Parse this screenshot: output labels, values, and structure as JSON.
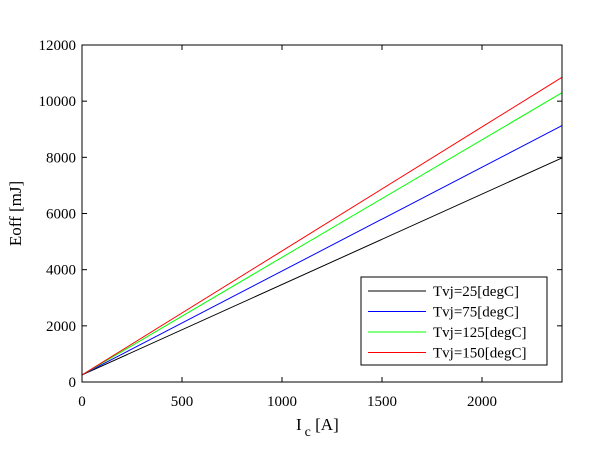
{
  "chart_data": {
    "type": "line",
    "xlabel_main": "I",
    "xlabel_sub": "c",
    "xlabel_unit": " [A]",
    "ylabel": "Eoff [mJ]",
    "xlim": [
      0,
      2400
    ],
    "ylim": [
      0,
      12000
    ],
    "xticks": [
      0,
      500,
      1000,
      1500,
      2000
    ],
    "yticks": [
      0,
      2000,
      4000,
      6000,
      8000,
      10000,
      12000
    ],
    "grid": false,
    "legend_position": "bottom-right",
    "series": [
      {
        "name": "Tvj=25[degC]",
        "color": "#000000",
        "x": [
          0,
          2400
        ],
        "y": [
          250,
          7980
        ]
      },
      {
        "name": "Tvj=75[degC]",
        "color": "#0000ff",
        "x": [
          0,
          2400
        ],
        "y": [
          250,
          9130
        ]
      },
      {
        "name": "Tvj=125[degC]",
        "color": "#00ff00",
        "x": [
          0,
          2400
        ],
        "y": [
          250,
          10300
        ]
      },
      {
        "name": "Tvj=150[degC]",
        "color": "#ff0000",
        "x": [
          0,
          2400
        ],
        "y": [
          250,
          10850
        ]
      }
    ]
  }
}
